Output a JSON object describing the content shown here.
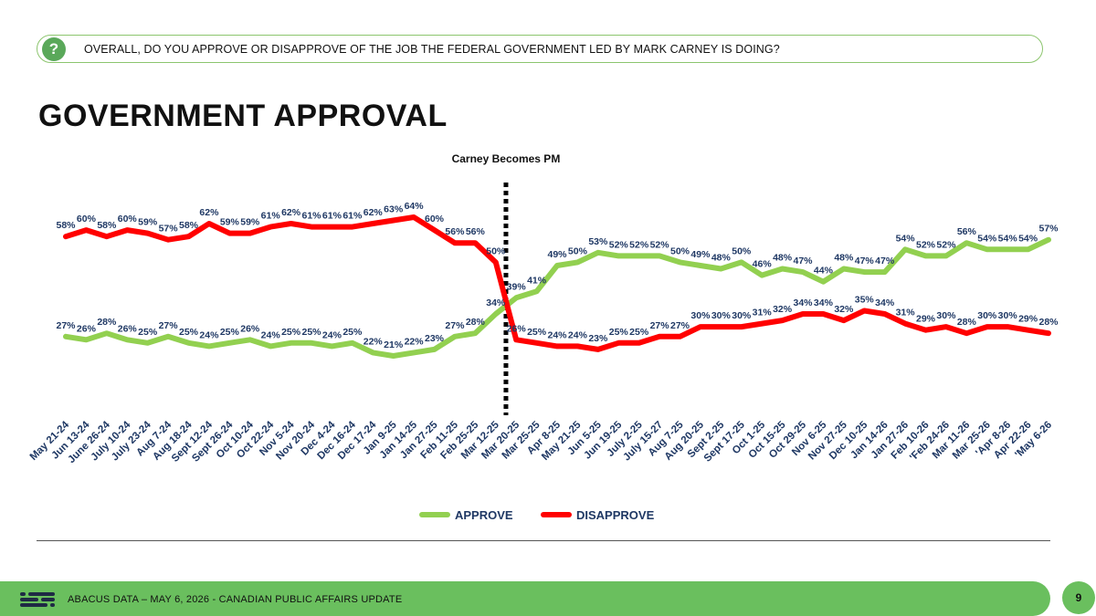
{
  "question": "OVERALL, DO YOU APPROVE OR DISAPPROVE OF THE JOB THE FEDERAL GOVERNMENT LED BY MARK CARNEY IS DOING?",
  "question_icon": "question-mark-icon",
  "title": "GOVERNMENT APPROVAL",
  "footer": {
    "text": "ABACUS DATA – MAY 6, 2026 - CANADIAN PUBLIC AFFAIRS UPDATE",
    "page": "9",
    "logo_icon": "abacus-logo-icon"
  },
  "colors": {
    "approve": "#92d050",
    "disapprove": "#ff0000",
    "label_text": "#1f3864",
    "accent_green": "#6abf5e"
  },
  "chart_data": {
    "type": "line",
    "categories": [
      "May 21-24",
      "Jun 13-24",
      "June 26-24",
      "July 10-24",
      "July 23-24",
      "Aug 7-24",
      "Aug 18-24",
      "Sept 12-24",
      "Sept 26-24",
      "Oct 10-24",
      "Oct 22-24",
      "Nov 5-24",
      "Nov 20-24",
      "Dec 4-24",
      "Dec 16-24",
      "Dec 17-24",
      "Jan 9-25",
      "Jan 14-25",
      "Jan 27-25",
      "Feb 11-25",
      "Feb 25-25",
      "Mar 12-25",
      "Mar 20-25",
      "Mar 25-25",
      "Apr 8-25",
      "May 21-25",
      "Jun 5-25",
      "Jun 19-25",
      "July 2-25",
      "July 15-27",
      "Aug 7-25",
      "Aug 20-25",
      "Sept 2-25",
      "Sept 17-25",
      "Oct 1-25",
      "Oct 15-25",
      "Oct 29-25",
      "Nov 6-25",
      "Nov 27-25",
      "Dec 10-25",
      "Jan 14-26",
      "Jan 27-26",
      "Feb 10-26",
      "'Feb 24-26",
      "Mar 11-26",
      "Mar 25-26",
      "'Apr 8-26",
      "Apr 22-26",
      "'May 6-26"
    ],
    "series": [
      {
        "name": "APPROVE",
        "values": [
          27,
          26,
          28,
          26,
          25,
          27,
          25,
          24,
          25,
          26,
          24,
          25,
          25,
          24,
          25,
          22,
          21,
          22,
          23,
          27,
          28,
          34,
          39,
          41,
          49,
          50,
          53,
          52,
          52,
          52,
          50,
          49,
          48,
          50,
          46,
          48,
          47,
          44,
          48,
          47,
          47,
          54,
          52,
          52,
          56,
          54,
          54,
          54,
          57
        ]
      },
      {
        "name": "DISAPPROVE",
        "values": [
          58,
          60,
          58,
          60,
          59,
          57,
          58,
          62,
          59,
          59,
          61,
          62,
          61,
          61,
          61,
          62,
          63,
          64,
          60,
          56,
          56,
          50,
          26,
          25,
          24,
          24,
          23,
          25,
          25,
          27,
          27,
          30,
          30,
          30,
          31,
          32,
          34,
          34,
          32,
          35,
          34,
          31,
          29,
          30,
          28,
          30,
          30,
          29,
          28
        ]
      }
    ],
    "annotation": "Carney Becomes PM",
    "annotation_after": "Mar 12-25",
    "legend_position": "bottom",
    "ylim": [
      0,
      100
    ],
    "grid": false
  }
}
